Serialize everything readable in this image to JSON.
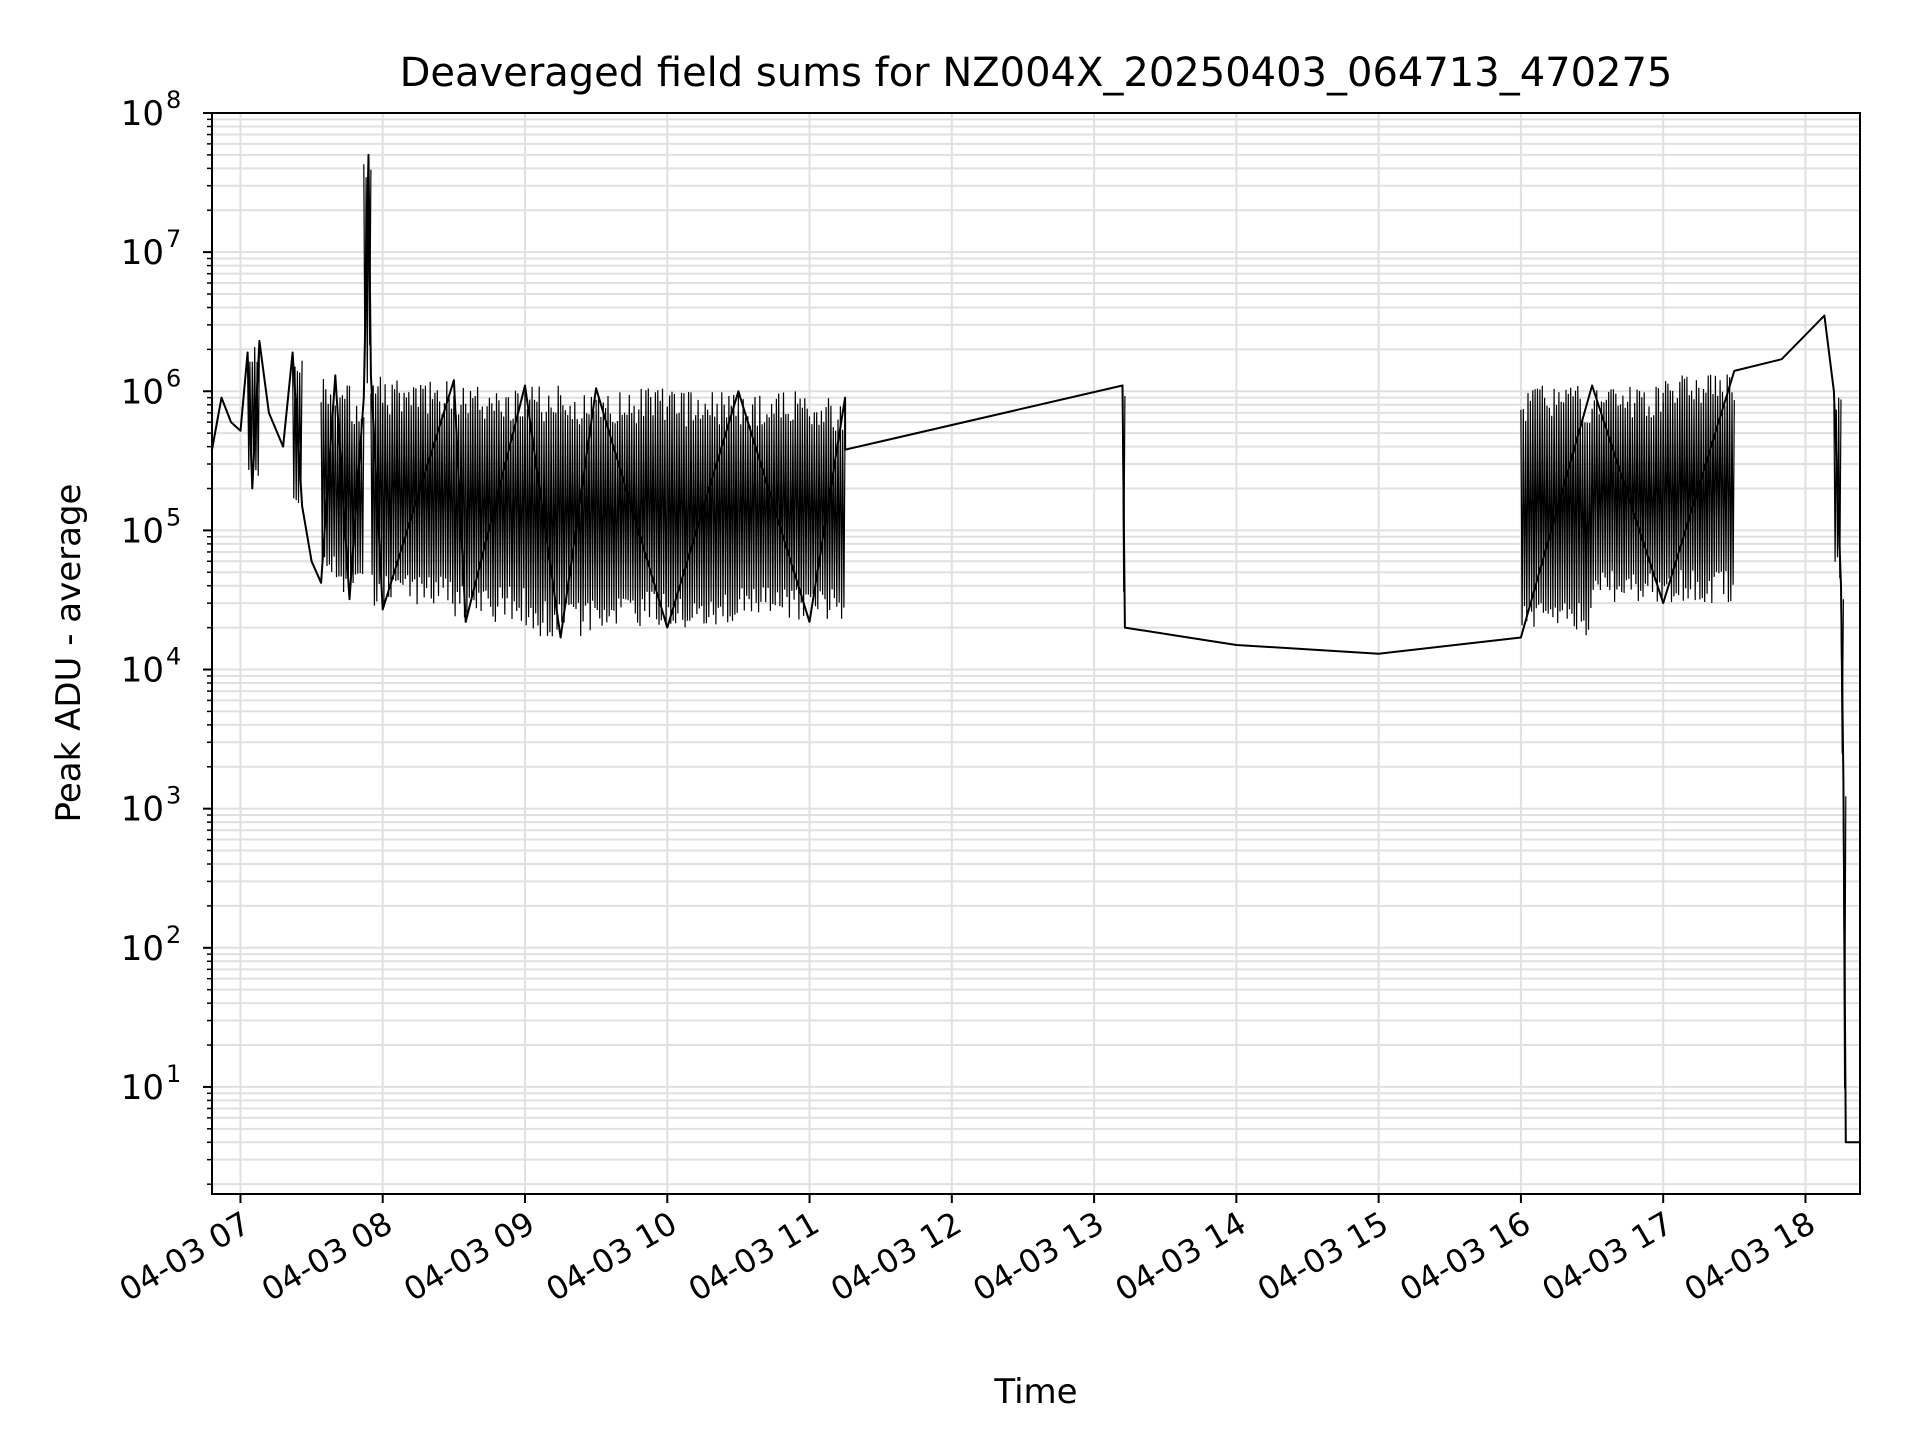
{
  "chart_data": {
    "type": "line",
    "title": "Deaveraged field sums for NZ004X_20250403_064713_470275",
    "xlabel": "Time",
    "ylabel": "Peak ADU - average",
    "x_scale": "time",
    "y_scale": "log",
    "xlim": [
      "2025-04-03 06:48",
      "2025-04-03 18:23"
    ],
    "ylim": [
      1.7,
      100000000
    ],
    "x_ticks": [
      {
        "time": "2025-04-03 07:00",
        "label": "04-03 07"
      },
      {
        "time": "2025-04-03 08:00",
        "label": "04-03 08"
      },
      {
        "time": "2025-04-03 09:00",
        "label": "04-03 09"
      },
      {
        "time": "2025-04-03 10:00",
        "label": "04-03 10"
      },
      {
        "time": "2025-04-03 11:00",
        "label": "04-03 11"
      },
      {
        "time": "2025-04-03 12:00",
        "label": "04-03 12"
      },
      {
        "time": "2025-04-03 13:00",
        "label": "04-03 13"
      },
      {
        "time": "2025-04-03 14:00",
        "label": "04-03 14"
      },
      {
        "time": "2025-04-03 15:00",
        "label": "04-03 15"
      },
      {
        "time": "2025-04-03 16:00",
        "label": "04-03 16"
      },
      {
        "time": "2025-04-03 17:00",
        "label": "04-03 17"
      },
      {
        "time": "2025-04-03 18:00",
        "label": "04-03 18"
      }
    ],
    "y_ticks": [
      {
        "value": 10,
        "base": "10",
        "exp": "1"
      },
      {
        "value": 100,
        "base": "10",
        "exp": "2"
      },
      {
        "value": 1000,
        "base": "10",
        "exp": "3"
      },
      {
        "value": 10000,
        "base": "10",
        "exp": "4"
      },
      {
        "value": 100000,
        "base": "10",
        "exp": "5"
      },
      {
        "value": 1000000,
        "base": "10",
        "exp": "6"
      },
      {
        "value": 10000000,
        "base": "10",
        "exp": "7"
      },
      {
        "value": 100000000,
        "base": "10",
        "exp": "8"
      }
    ],
    "grid": true,
    "minor_grid": true,
    "colors": {
      "line": "#000000",
      "grid": "#e0e0e0",
      "axes": "#000000"
    },
    "series": [
      {
        "points": [
          [
            "2025-04-03 06:48",
            380000
          ],
          [
            "2025-04-03 06:52",
            900000
          ],
          [
            "2025-04-03 06:56",
            600000
          ],
          [
            "2025-04-03 07:00",
            520000
          ],
          [
            "2025-04-03 07:03",
            1900000
          ],
          [
            "2025-04-03 07:05",
            200000
          ],
          [
            "2025-04-03 07:08",
            2300000
          ],
          [
            "2025-04-03 07:12",
            700000
          ],
          [
            "2025-04-03 07:18",
            400000
          ],
          [
            "2025-04-03 07:22",
            1900000
          ],
          [
            "2025-04-03 07:26",
            150000
          ],
          [
            "2025-04-03 07:30",
            60000
          ],
          [
            "2025-04-03 07:34",
            42000
          ],
          [
            "2025-04-03 07:40",
            1300000
          ],
          [
            "2025-04-03 07:46",
            32000
          ],
          [
            "2025-04-03 07:52",
            900000
          ],
          [
            "2025-04-03 07:54",
            50000000
          ],
          [
            "2025-04-03 07:55",
            1300000
          ],
          [
            "2025-04-03 08:00",
            27000
          ],
          [
            "2025-04-03 08:30",
            1200000
          ],
          [
            "2025-04-03 08:35",
            22000
          ],
          [
            "2025-04-03 09:00",
            1100000
          ],
          [
            "2025-04-03 09:15",
            17000
          ],
          [
            "2025-04-03 09:30",
            1050000
          ],
          [
            "2025-04-03 10:00",
            20000
          ],
          [
            "2025-04-03 10:30",
            1000000
          ],
          [
            "2025-04-03 11:00",
            22000
          ],
          [
            "2025-04-03 11:15",
            900000
          ],
          [
            "2025-04-03 11:15",
            380000
          ],
          [
            "2025-04-03 13:12",
            1100000
          ],
          [
            "2025-04-03 13:13",
            20000
          ],
          [
            "2025-04-03 14:00",
            15000
          ],
          [
            "2025-04-03 15:00",
            13000
          ],
          [
            "2025-04-03 16:00",
            17000
          ],
          [
            "2025-04-03 16:30",
            1100000
          ],
          [
            "2025-04-03 17:00",
            30000
          ],
          [
            "2025-04-03 17:30",
            1400000
          ],
          [
            "2025-04-03 17:50",
            1700000
          ],
          [
            "2025-04-03 18:08",
            3500000
          ],
          [
            "2025-04-03 18:12",
            1000000
          ],
          [
            "2025-04-03 18:15",
            40000
          ],
          [
            "2025-04-03 18:16",
            1600
          ],
          [
            "2025-04-03 18:17",
            4
          ],
          [
            "2025-04-03 18:23",
            4
          ]
        ]
      }
    ]
  }
}
